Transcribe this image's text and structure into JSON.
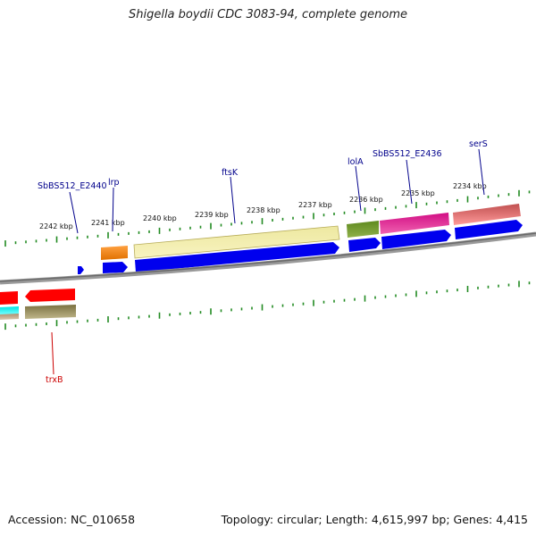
{
  "title": "Shigella boydii CDC 3083-94, complete genome",
  "accession": "Accession: NC_010658",
  "stats": "Topology: circular; Length: 4,615,997 bp; Genes: 4,415",
  "kbp_labels": [
    "2242 kbp",
    "2241 kbp",
    "2240 kbp",
    "2239 kbp",
    "2238 kbp",
    "2237 kbp",
    "2236 kbp",
    "2235 kbp",
    "2234 kbp"
  ],
  "gene_labels": {
    "sbbs512_e2440": "SbBS512_E2440",
    "lrp": "lrp",
    "ftsk": "ftsK",
    "lola": "lolA",
    "sbbs512_e2436": "SbBS512_E2436",
    "sers": "serS",
    "trxb": "trxB"
  },
  "colors": {
    "forward_label": "#00008b",
    "reverse_label": "#cc0000",
    "cds": "#0000ee",
    "tick": "#228b22",
    "backbone": "#808080"
  }
}
